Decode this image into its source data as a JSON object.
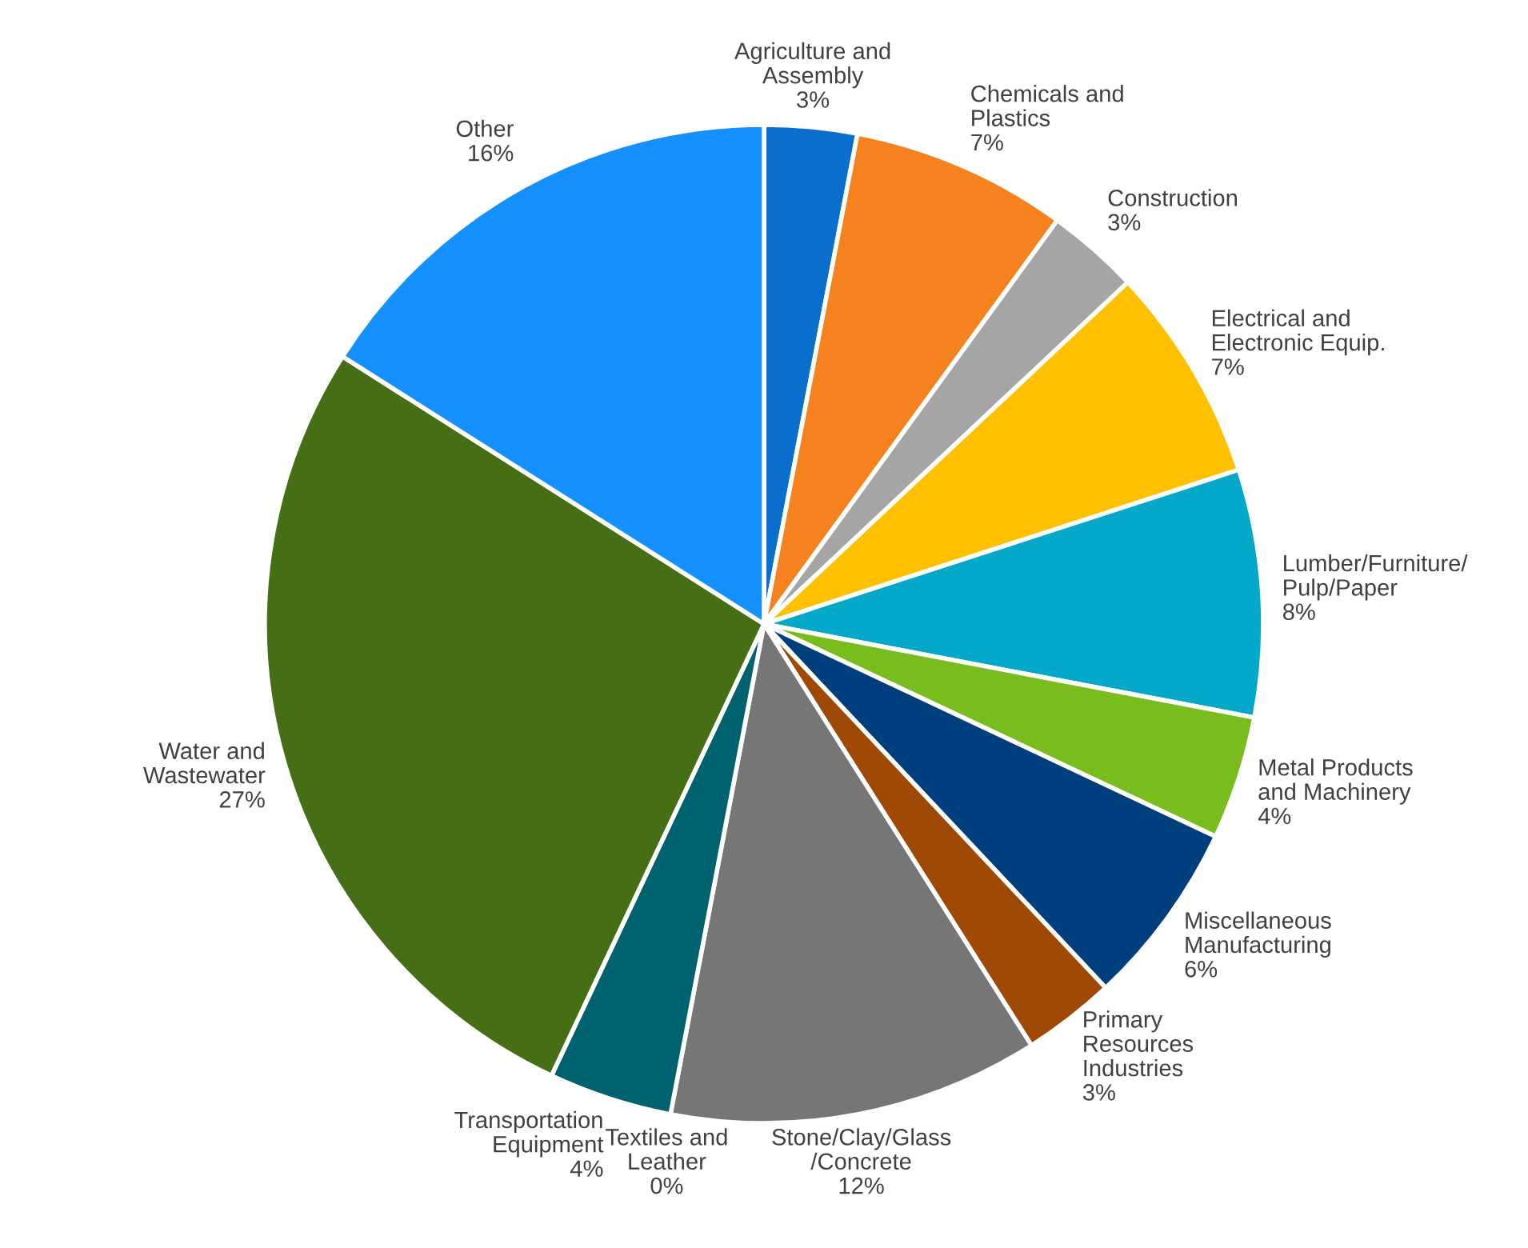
{
  "chart_data": {
    "type": "pie",
    "categories": [
      "Agriculture and\nAssembly",
      "Chemicals and\nPlastics",
      "Construction",
      "Electrical and\nElectronic Equip.",
      "Lumber/Furniture/\nPulp/Paper",
      "Metal Products\nand Machinery",
      "Miscellaneous\nManufacturing",
      "Primary\nResources\nIndustries",
      "Stone/Clay/Glass\n/Concrete",
      "Textiles and\nLeather",
      "Transportation\nEquipment",
      "Water and\nWastewater",
      "Other"
    ],
    "values": [
      3,
      7,
      3,
      7,
      8,
      4,
      6,
      3,
      12,
      0,
      4,
      27,
      16
    ],
    "value_labels": [
      "3%",
      "7%",
      "3%",
      "7%",
      "8%",
      "4%",
      "6%",
      "3%",
      "12%",
      "0%",
      "4%",
      "27%",
      "16%"
    ],
    "colors": [
      "#0a6fcc",
      "#f5821f",
      "#a5a5a5",
      "#ffc000",
      "#05a8c8",
      "#78bc1e",
      "#003f7d",
      "#9e4a06",
      "#767676",
      "#2f7f8c",
      "#00626e",
      "#466e14",
      "#1490ff"
    ],
    "legend": false
  }
}
